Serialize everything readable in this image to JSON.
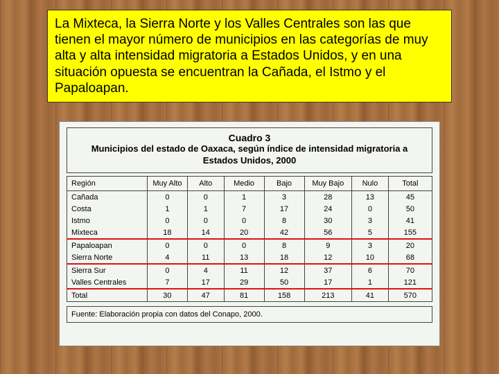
{
  "caption": "La Mixteca, la Sierra Norte y los Valles Centrales son las que tienen el mayor número de municipios en las categorías de muy alta y alta intensidad migratoria a Estados Unidos, y en una situación opuesta se encuentran la Cañada, el Istmo y el Papaloapan.",
  "table": {
    "title_line1": "Cuadro 3",
    "title_line2": "Municipios del estado de Oaxaca, según índice de intensidad migratoria a Estados Unidos, 2000",
    "columns": [
      "Región",
      "Muy Alto",
      "Alto",
      "Medio",
      "Bajo",
      "Muy Bajo",
      "Nulo",
      "Total"
    ],
    "col_widths": [
      "22%",
      "11%",
      "10%",
      "11%",
      "11%",
      "13%",
      "10%",
      "12%"
    ],
    "rows": [
      {
        "region": "Cañada",
        "vals": [
          "0",
          "0",
          "1",
          "3",
          "28",
          "13",
          "45"
        ],
        "highlight": false
      },
      {
        "region": "Costa",
        "vals": [
          "1",
          "1",
          "7",
          "17",
          "24",
          "0",
          "50"
        ],
        "highlight": false
      },
      {
        "region": "Istmo",
        "vals": [
          "0",
          "0",
          "0",
          "8",
          "30",
          "3",
          "41"
        ],
        "highlight": false
      },
      {
        "region": "Mixteca",
        "vals": [
          "18",
          "14",
          "20",
          "42",
          "56",
          "5",
          "155"
        ],
        "highlight": true
      },
      {
        "region": "Papaloapan",
        "vals": [
          "0",
          "0",
          "0",
          "8",
          "9",
          "3",
          "20"
        ],
        "highlight": false
      },
      {
        "region": "Sierra Norte",
        "vals": [
          "4",
          "11",
          "13",
          "18",
          "12",
          "10",
          "68"
        ],
        "highlight": true
      },
      {
        "region": "Sierra Sur",
        "vals": [
          "0",
          "4",
          "11",
          "12",
          "37",
          "6",
          "70"
        ],
        "highlight": false
      },
      {
        "region": "Valles Centrales",
        "vals": [
          "7",
          "17",
          "29",
          "50",
          "17",
          "1",
          "121"
        ],
        "highlight": true
      }
    ],
    "total": {
      "label": "Total",
      "vals": [
        "30",
        "47",
        "81",
        "158",
        "213",
        "41",
        "570"
      ]
    },
    "source": "Fuente: Elaboración propia con datos del Conapo, 2000.",
    "highlight_color": "#d11a1a",
    "border_color": "#444444",
    "bg_color": "#f3f5f1"
  }
}
